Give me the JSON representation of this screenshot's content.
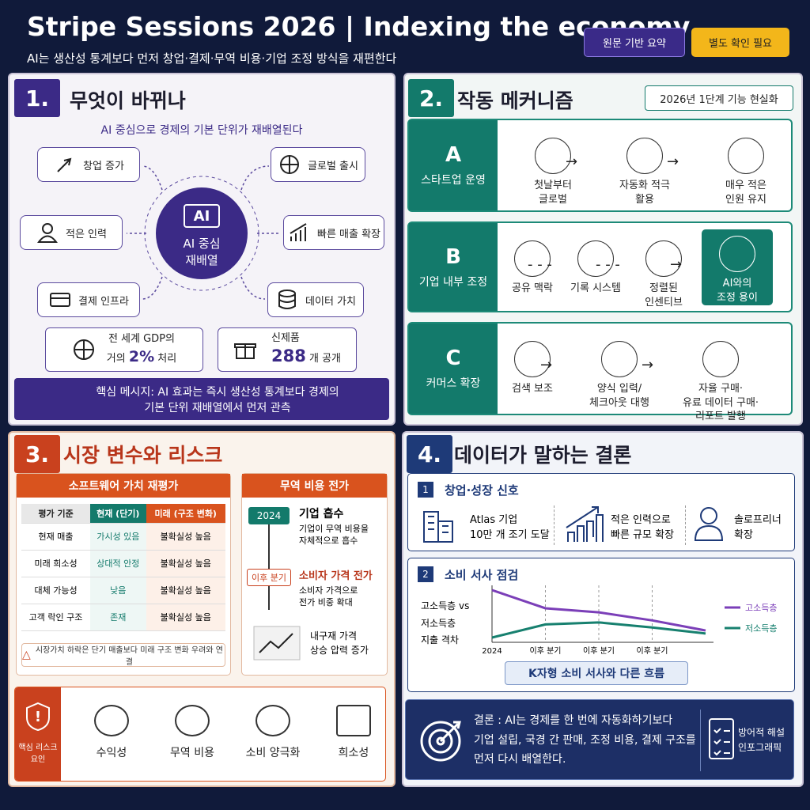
{
  "header": {
    "title": "Stripe Sessions 2026 | Indexing the economy",
    "subtitle": "AI는 생산성 통계보다 먼저 창업·결제·무역 비용·기업 조정 방식을 재편한다",
    "badges": [
      "원문 기반 요약",
      "별도 확인 필요"
    ]
  },
  "panel1": {
    "number": "1.",
    "title": "무엇이 바뀌나",
    "subtitle": "AI 중심으로 경제의 기본 단위가 재배열된다",
    "center_chip": "AI",
    "center_label": "AI 중심\n재배열",
    "nodes": [
      "창업 증가",
      "글로벌 출시",
      "적은 인력",
      "빠른 매출 확장",
      "결제 인프라",
      "데이터 가치"
    ],
    "stats": [
      {
        "line1": "전 세계 GDP의",
        "prefix": "거의",
        "value": "2%",
        "suffix": "처리"
      },
      {
        "line1": "신제품",
        "value": "288",
        "suffix": "개 공개"
      }
    ],
    "message": "핵심 메시지: AI 효과는 즉시 생산성 통계보다 경제의\n기본 단위 재배열에서 먼저 관측"
  },
  "panel2": {
    "number": "2.",
    "title": "작동 메커니즘",
    "badge": "2026년 1단계 기능 현실화",
    "rows": [
      {
        "letter": "A",
        "label": "스타트업 운영",
        "steps": [
          "첫날부터\n글로벌",
          "자동화 적극\n활용",
          "매우 적은\n인원 유지"
        ]
      },
      {
        "letter": "B",
        "label": "기업 내부 조정",
        "steps": [
          "공유 맥락",
          "기록 시스템",
          "정렬된\n인센티브",
          "AI와의\n조정 용이"
        ]
      },
      {
        "letter": "C",
        "label": "커머스 확장",
        "steps": [
          "검색 보조",
          "양식 입력/\n체크아웃 대행",
          "자율 구매·\n유료 데이터 구매·\n리포트 발행"
        ]
      }
    ]
  },
  "panel3": {
    "number": "3.",
    "title": "시장 변수와 리스크",
    "table": {
      "title": "소프트웨어 가치 재평가",
      "headers": [
        "평가 기준",
        "현재 (단기)",
        "미래 (구조 변화)"
      ],
      "rows": [
        [
          "현재 매출",
          "가시성 있음",
          "불확실성 높음"
        ],
        [
          "미래 희소성",
          "상대적 안정",
          "불확실성 높음"
        ],
        [
          "대체 가능성",
          "낮음",
          "불확실성 높음"
        ],
        [
          "고객 락인 구조",
          "존재",
          "불확실성 높음"
        ]
      ],
      "note": "시장가치 하락은 단기 매출보다 미래 구조 변화 우려와 연결"
    },
    "trade": {
      "title": "무역 비용 전가",
      "steps": [
        {
          "tag": "2024",
          "title": "기업 흡수",
          "desc": "기업이 무역 비용을\n자체적으로 흡수"
        },
        {
          "tag": "이후 분기",
          "title": "소비자 가격 전가",
          "desc": "소비자 가격으로\n전가 비중 확대"
        }
      ],
      "final": "내구재 가격\n상승 압력 증가"
    },
    "risks": {
      "label": "핵심 리스크\n요인",
      "items": [
        "수익성",
        "무역 비용",
        "소비 양극화",
        "희소성"
      ]
    }
  },
  "panel4": {
    "number": "4.",
    "title": "데이터가 말하는 결론",
    "section1": {
      "number": "1",
      "title": "창업·성장 신호",
      "items": [
        "Atlas 기업\n10만 개 조기 도달",
        "적은 인력으로\n빠른 규모 확장",
        "솔로프리너\n확장"
      ]
    },
    "section2": {
      "number": "2",
      "title": "소비 서사 점검",
      "chart": {
        "type": "line",
        "y_label": "고소득층 vs\n저소득층\n지출 격차",
        "categories": [
          "2024",
          "이후 분기",
          "이후 분기",
          "이후 분기",
          null
        ],
        "series": [
          {
            "name": "고소득층",
            "color": "#7b3fb8",
            "values": [
              60,
              42,
              38,
              30,
              20
            ]
          },
          {
            "name": "저소득층",
            "color": "#17806f",
            "values": [
              13,
              26,
              28,
              23,
              17
            ]
          }
        ]
      },
      "caption": "K자형 소비 서사와 다른 흐름"
    },
    "conclusion": "결론 : AI는 경제를 한 번에 자동화하기보다\n기업 설립, 국경 간 판매, 조정 비용, 결제 구조를\n먼저 다시 배열한다.",
    "tag": "방어적 해설\n인포그래픽"
  }
}
